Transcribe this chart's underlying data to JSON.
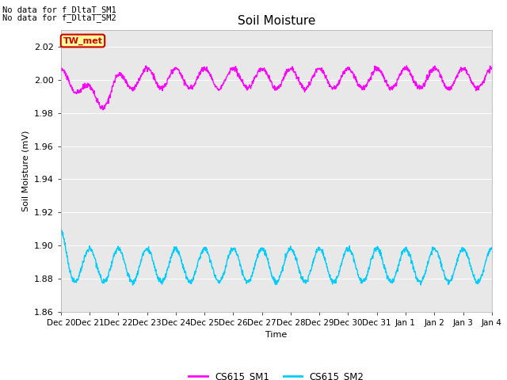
{
  "title": "Soil Moisture",
  "ylabel": "Soil Moisture (mV)",
  "xlabel": "Time",
  "ylim": [
    1.86,
    2.03
  ],
  "yticks": [
    1.86,
    1.88,
    1.9,
    1.92,
    1.94,
    1.96,
    1.98,
    2.0,
    2.02
  ],
  "xtick_labels": [
    "Dec 20",
    "Dec 21",
    "Dec 22",
    "Dec 23",
    "Dec 24",
    "Dec 25",
    "Dec 26",
    "Dec 27",
    "Dec 28",
    "Dec 29",
    "Dec 30",
    "Dec 31",
    "Jan 1",
    "Jan 2",
    "Jan 3",
    "Jan 4"
  ],
  "no_data_text": [
    "No data for f_DltaT_SM1",
    "No data for f_DltaT_SM2"
  ],
  "legend_labels": [
    "CS615_SM1",
    "CS615_SM2"
  ],
  "legend_colors": [
    "#ff00ff",
    "#00ccff"
  ],
  "tw_met_label": "TW_met",
  "tw_met_bg": "#ffff99",
  "tw_met_border": "#cc0000",
  "background_color": "#e8e8e8",
  "sm1_base": 2.001,
  "sm1_amplitude": 0.006,
  "sm2_base": 1.888,
  "sm2_amplitude": 0.01,
  "n_days": 15,
  "sm1_color": "#ff00ff",
  "sm2_color": "#00ccff",
  "line_width": 1.0
}
